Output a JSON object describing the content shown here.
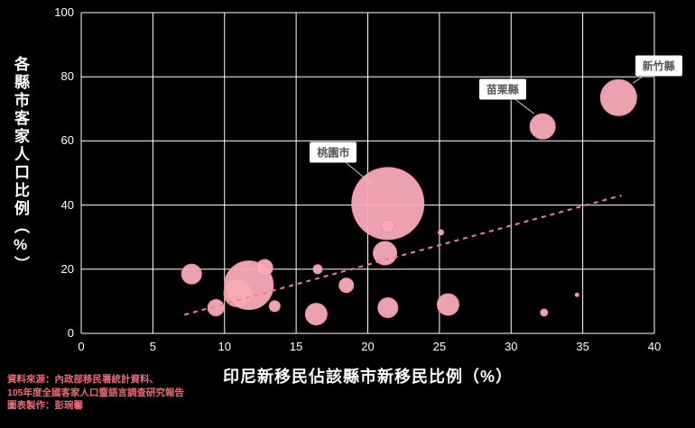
{
  "chart_data": {
    "type": "scatter",
    "xlabel": "印尼新移民佔該縣市新移民比例（%）",
    "ylabel": "各縣市客家人口比例（%）",
    "xlim": [
      0,
      40
    ],
    "ylim": [
      0,
      100
    ],
    "x_ticks": [
      0,
      5,
      10,
      15,
      20,
      25,
      30,
      35,
      40
    ],
    "y_ticks": [
      0,
      20,
      40,
      60,
      80,
      100
    ],
    "grid": true,
    "bubbles": [
      {
        "x": 7.7,
        "y": 18.5,
        "r": 11
      },
      {
        "x": 9.4,
        "y": 8.0,
        "r": 9
      },
      {
        "x": 10.9,
        "y": 12.5,
        "r": 15
      },
      {
        "x": 11.7,
        "y": 15.0,
        "r": 27
      },
      {
        "x": 12.8,
        "y": 20.5,
        "r": 9
      },
      {
        "x": 13.5,
        "y": 8.5,
        "r": 6
      },
      {
        "x": 16.4,
        "y": 6.0,
        "r": 12
      },
      {
        "x": 16.5,
        "y": 20.0,
        "r": 5
      },
      {
        "x": 18.5,
        "y": 15.0,
        "r": 8
      },
      {
        "x": 21.4,
        "y": 40.5,
        "r": 40
      },
      {
        "x": 21.2,
        "y": 25.0,
        "r": 13
      },
      {
        "x": 21.4,
        "y": 33.5,
        "r": 7
      },
      {
        "x": 21.4,
        "y": 8.0,
        "r": 11
      },
      {
        "x": 25.1,
        "y": 31.5,
        "r": 3
      },
      {
        "x": 25.6,
        "y": 9.0,
        "r": 12
      },
      {
        "x": 32.3,
        "y": 6.5,
        "r": 4
      },
      {
        "x": 34.6,
        "y": 12.0,
        "r": 2
      },
      {
        "x": 32.2,
        "y": 64.5,
        "r": 14
      },
      {
        "x": 37.5,
        "y": 73.5,
        "r": 20
      }
    ],
    "trendline": {
      "x1": 7.2,
      "y1": 5.8,
      "x2": 37.7,
      "y2": 43.0
    },
    "annotations": [
      {
        "label": "桃園市",
        "box_x": 17.6,
        "box_y": 56.5,
        "tx": 20.3,
        "ty": 46.5
      },
      {
        "label": "苗栗縣",
        "box_x": 29.4,
        "box_y": 76.0,
        "tx": 31.6,
        "ty": 68.5
      },
      {
        "label": "新竹縣",
        "box_x": 40.3,
        "box_y": 83.5,
        "tx": 38.5,
        "ty": 78.0
      }
    ],
    "colors": {
      "background": "#000000",
      "grid": "#ffffff",
      "bubble_fill": "#f9abb7",
      "bubble_stroke": "#ee8fa0",
      "trend": "#f2808f",
      "connector": "#cccccc",
      "tick_text": "#ffffff",
      "footer_text": "#ea6a76"
    }
  },
  "footer": {
    "line1": "資料來源：內政部移民署統計資料、",
    "line2": "105年度全國客家人口暨語言調查研究報告",
    "line3": "圖表製作：彭琬馨"
  }
}
